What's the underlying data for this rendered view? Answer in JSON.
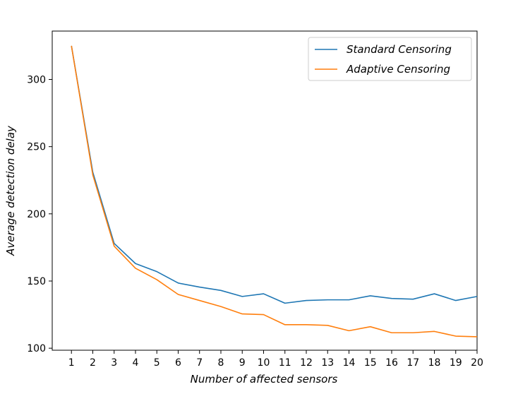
{
  "chart_data": {
    "type": "line",
    "x": [
      1,
      2,
      3,
      4,
      5,
      6,
      7,
      8,
      9,
      10,
      11,
      12,
      13,
      14,
      15,
      16,
      17,
      18,
      19,
      20
    ],
    "series": [
      {
        "name": "Standard Censoring",
        "color": "#1f77b4",
        "values": [
          325,
          231,
          178,
          163,
          157,
          148.5,
          145.5,
          143,
          138.5,
          140.5,
          133.5,
          135.5,
          136,
          136,
          139,
          137,
          136.5,
          140.5,
          135.5,
          138.5
        ]
      },
      {
        "name": "Adaptive Censoring",
        "color": "#ff7f0e",
        "values": [
          325,
          229,
          176,
          159.5,
          151,
          140,
          135.5,
          131,
          125.5,
          125,
          117.5,
          117.5,
          117,
          113,
          116,
          111.5,
          111.5,
          112.5,
          109,
          108.5
        ]
      }
    ],
    "xlabel": "Number of affected sensors",
    "ylabel": "Average detection delay",
    "xticks": [
      "1",
      "2",
      "3",
      "4",
      "5",
      "6",
      "7",
      "8",
      "9",
      "10",
      "11",
      "12",
      "13",
      "14",
      "15",
      "16",
      "17",
      "18",
      "19",
      "20"
    ],
    "yticks": [
      100,
      150,
      200,
      250,
      300
    ],
    "xlim": [
      0.1,
      20.0
    ],
    "ylim": [
      98.5,
      336
    ],
    "grid": false,
    "legend_position": "top-right"
  }
}
